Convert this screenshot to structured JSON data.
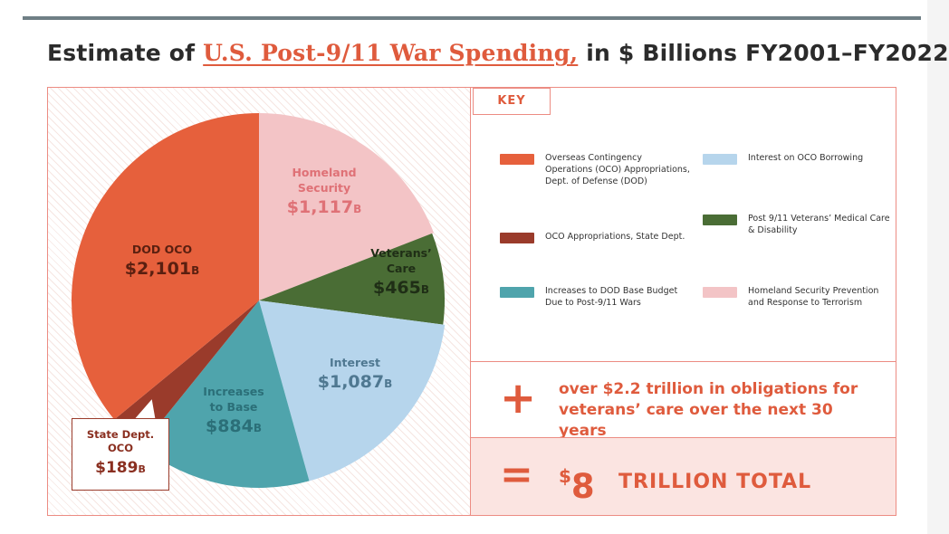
{
  "title": {
    "prefix": "Estimate of ",
    "link_text": "U.S. Post-9/11 War Spending,",
    "suffix": " in $ Billions FY2001–FY2022"
  },
  "chart_data": {
    "type": "pie",
    "title": "Estimate of U.S. Post-9/11 War Spending, in $ Billions FY2001–FY2022",
    "unit": "B",
    "slices": [
      {
        "key": "homeland",
        "label_lines": [
          "Homeland",
          "Security"
        ],
        "value": 1117,
        "display": "$1,117",
        "color": "#f3c4c6",
        "text_color": "#df7176"
      },
      {
        "key": "veterans",
        "label_lines": [
          "Veterans’",
          "Care"
        ],
        "value": 465,
        "display": "$465",
        "color": "#4a6d35",
        "text_color": "#1f2e16"
      },
      {
        "key": "interest",
        "label_lines": [
          "Interest"
        ],
        "value": 1087,
        "display": "$1,087",
        "color": "#b6d5ec",
        "text_color": "#4f7891"
      },
      {
        "key": "base",
        "label_lines": [
          "Increases",
          "to Base"
        ],
        "value": 884,
        "display": "$884",
        "color": "#4fa4ac",
        "text_color": "#2b6f78"
      },
      {
        "key": "state",
        "label_lines": [
          "State Dept.",
          "OCO"
        ],
        "value": 189,
        "display": "$189",
        "color": "#9a3b2b",
        "text_color": "#8a2f20"
      },
      {
        "key": "dod",
        "label_lines": [
          "DOD OCO"
        ],
        "value": 2101,
        "display": "$2,101",
        "color": "#e6603c",
        "text_color": "#5a1f10"
      }
    ]
  },
  "key": {
    "heading": "KEY",
    "items": [
      {
        "label": "Overseas Contingency Operations (OCO) Appropriations, Dept. of Defense (DOD)",
        "color": "#e6603c"
      },
      {
        "label": "OCO Appropriations, State Dept.",
        "color": "#9a3b2b"
      },
      {
        "label": "Increases to DOD Base Budget Due to Post-9/11 Wars",
        "color": "#4fa4ac"
      },
      {
        "label": "Interest on OCO Borrowing",
        "color": "#b6d5ec"
      },
      {
        "label": "Post 9/11 Veterans’ Medical Care & Disability",
        "color": "#4a6d35"
      },
      {
        "label": "Homeland Security Prevention and Response to Terrorism",
        "color": "#f3c4c6"
      }
    ]
  },
  "obligations": {
    "symbol": "+",
    "text": "over $2.2 trillion in obligations for veterans’ care over the next 30 years"
  },
  "total": {
    "symbol": "=",
    "currency": "$",
    "amount": "8",
    "word": "TRILLION TOTAL"
  }
}
